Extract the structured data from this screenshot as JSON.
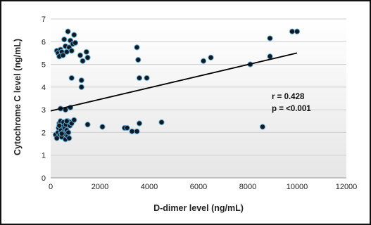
{
  "chart_data": {
    "type": "scatter",
    "xlabel": "D-dimer level (ng/mL)",
    "ylabel": "Cytochrome C level (ng/mL)",
    "xlim": [
      0,
      12000
    ],
    "ylim": [
      0,
      7
    ],
    "x_ticks": [
      "0",
      "2000",
      "4000",
      "6000",
      "8000",
      "10000",
      "12000"
    ],
    "y_ticks": [
      "0",
      "1",
      "2",
      "3",
      "4",
      "5",
      "6",
      "7"
    ],
    "grid": "horizontal",
    "annotations": [
      "r = 0.428",
      "p = <0.001"
    ],
    "trendline": {
      "x": [
        0,
        10000
      ],
      "y": [
        2.95,
        5.5
      ]
    },
    "colors": {
      "marker_fill": "#101820",
      "marker_edge": "#5aa7d6",
      "line": "#000000"
    },
    "points": [
      {
        "x": 200,
        "y": 1.9
      },
      {
        "x": 250,
        "y": 1.75
      },
      {
        "x": 300,
        "y": 2.0
      },
      {
        "x": 320,
        "y": 2.2
      },
      {
        "x": 350,
        "y": 2.4
      },
      {
        "x": 380,
        "y": 1.9
      },
      {
        "x": 400,
        "y": 2.5
      },
      {
        "x": 420,
        "y": 2.1
      },
      {
        "x": 450,
        "y": 1.8
      },
      {
        "x": 470,
        "y": 2.3
      },
      {
        "x": 500,
        "y": 2.0
      },
      {
        "x": 520,
        "y": 2.45
      },
      {
        "x": 550,
        "y": 1.95
      },
      {
        "x": 580,
        "y": 2.2
      },
      {
        "x": 600,
        "y": 1.7
      },
      {
        "x": 620,
        "y": 2.35
      },
      {
        "x": 650,
        "y": 2.1
      },
      {
        "x": 680,
        "y": 1.85
      },
      {
        "x": 700,
        "y": 2.5
      },
      {
        "x": 720,
        "y": 2.0
      },
      {
        "x": 750,
        "y": 1.75
      },
      {
        "x": 780,
        "y": 2.3
      },
      {
        "x": 800,
        "y": 2.45
      },
      {
        "x": 850,
        "y": 2.4
      },
      {
        "x": 950,
        "y": 2.55
      },
      {
        "x": 450,
        "y": 1.95
      },
      {
        "x": 350,
        "y": 2.3
      },
      {
        "x": 650,
        "y": 2.5
      },
      {
        "x": 400,
        "y": 3.05
      },
      {
        "x": 600,
        "y": 3.0
      },
      {
        "x": 800,
        "y": 3.1
      },
      {
        "x": 250,
        "y": 5.6
      },
      {
        "x": 300,
        "y": 5.5
      },
      {
        "x": 350,
        "y": 5.35
      },
      {
        "x": 400,
        "y": 5.65
      },
      {
        "x": 450,
        "y": 5.55
      },
      {
        "x": 500,
        "y": 5.4
      },
      {
        "x": 550,
        "y": 6.1
      },
      {
        "x": 600,
        "y": 5.8
      },
      {
        "x": 650,
        "y": 5.55
      },
      {
        "x": 700,
        "y": 6.45
      },
      {
        "x": 750,
        "y": 5.75
      },
      {
        "x": 800,
        "y": 6.05
      },
      {
        "x": 850,
        "y": 5.6
      },
      {
        "x": 900,
        "y": 5.9
      },
      {
        "x": 950,
        "y": 6.3
      },
      {
        "x": 1000,
        "y": 5.95
      },
      {
        "x": 850,
        "y": 4.4
      },
      {
        "x": 1200,
        "y": 5.4
      },
      {
        "x": 1250,
        "y": 4.3
      },
      {
        "x": 1250,
        "y": 4.0
      },
      {
        "x": 1300,
        "y": 5.15
      },
      {
        "x": 1450,
        "y": 5.55
      },
      {
        "x": 1500,
        "y": 5.3
      },
      {
        "x": 1500,
        "y": 2.35
      },
      {
        "x": 2100,
        "y": 2.25
      },
      {
        "x": 3000,
        "y": 2.2
      },
      {
        "x": 3100,
        "y": 2.2
      },
      {
        "x": 3300,
        "y": 2.05
      },
      {
        "x": 3500,
        "y": 2.05
      },
      {
        "x": 3500,
        "y": 5.75
      },
      {
        "x": 3550,
        "y": 5.2
      },
      {
        "x": 3600,
        "y": 4.4
      },
      {
        "x": 3600,
        "y": 2.4
      },
      {
        "x": 3900,
        "y": 4.4
      },
      {
        "x": 4500,
        "y": 2.45
      },
      {
        "x": 6200,
        "y": 5.15
      },
      {
        "x": 6500,
        "y": 5.3
      },
      {
        "x": 8100,
        "y": 5.0
      },
      {
        "x": 8600,
        "y": 2.25
      },
      {
        "x": 8900,
        "y": 6.15
      },
      {
        "x": 8900,
        "y": 5.35
      },
      {
        "x": 9800,
        "y": 6.45
      },
      {
        "x": 10000,
        "y": 6.45
      }
    ]
  }
}
